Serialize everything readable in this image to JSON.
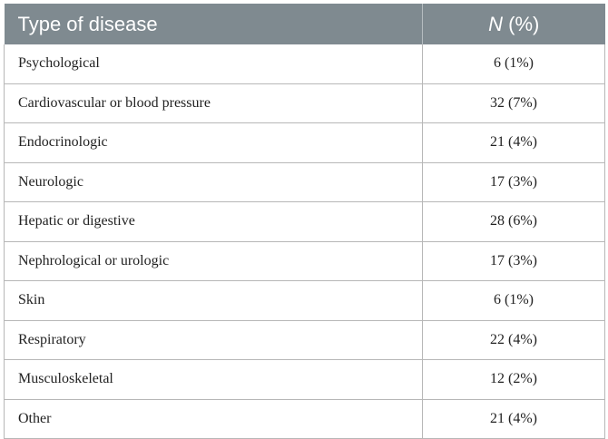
{
  "table": {
    "headers": {
      "type_label": "Type of disease",
      "n_label": "N",
      "pct_label": " (%)"
    },
    "rows": [
      {
        "type": "Psychological",
        "value": "6 (1%)"
      },
      {
        "type": "Cardiovascular or blood pressure",
        "value": "32 (7%)"
      },
      {
        "type": "Endocrinologic",
        "value": "21 (4%)"
      },
      {
        "type": "Neurologic",
        "value": "17 (3%)"
      },
      {
        "type": "Hepatic or digestive",
        "value": "28 (6%)"
      },
      {
        "type": "Nephrological or urologic",
        "value": "17 (3%)"
      },
      {
        "type": "Skin",
        "value": "6 (1%)"
      },
      {
        "type": "Respiratory",
        "value": "22 (4%)"
      },
      {
        "type": "Musculoskeletal",
        "value": "12 (2%)"
      },
      {
        "type": "Other",
        "value": "21 (4%)"
      }
    ]
  }
}
